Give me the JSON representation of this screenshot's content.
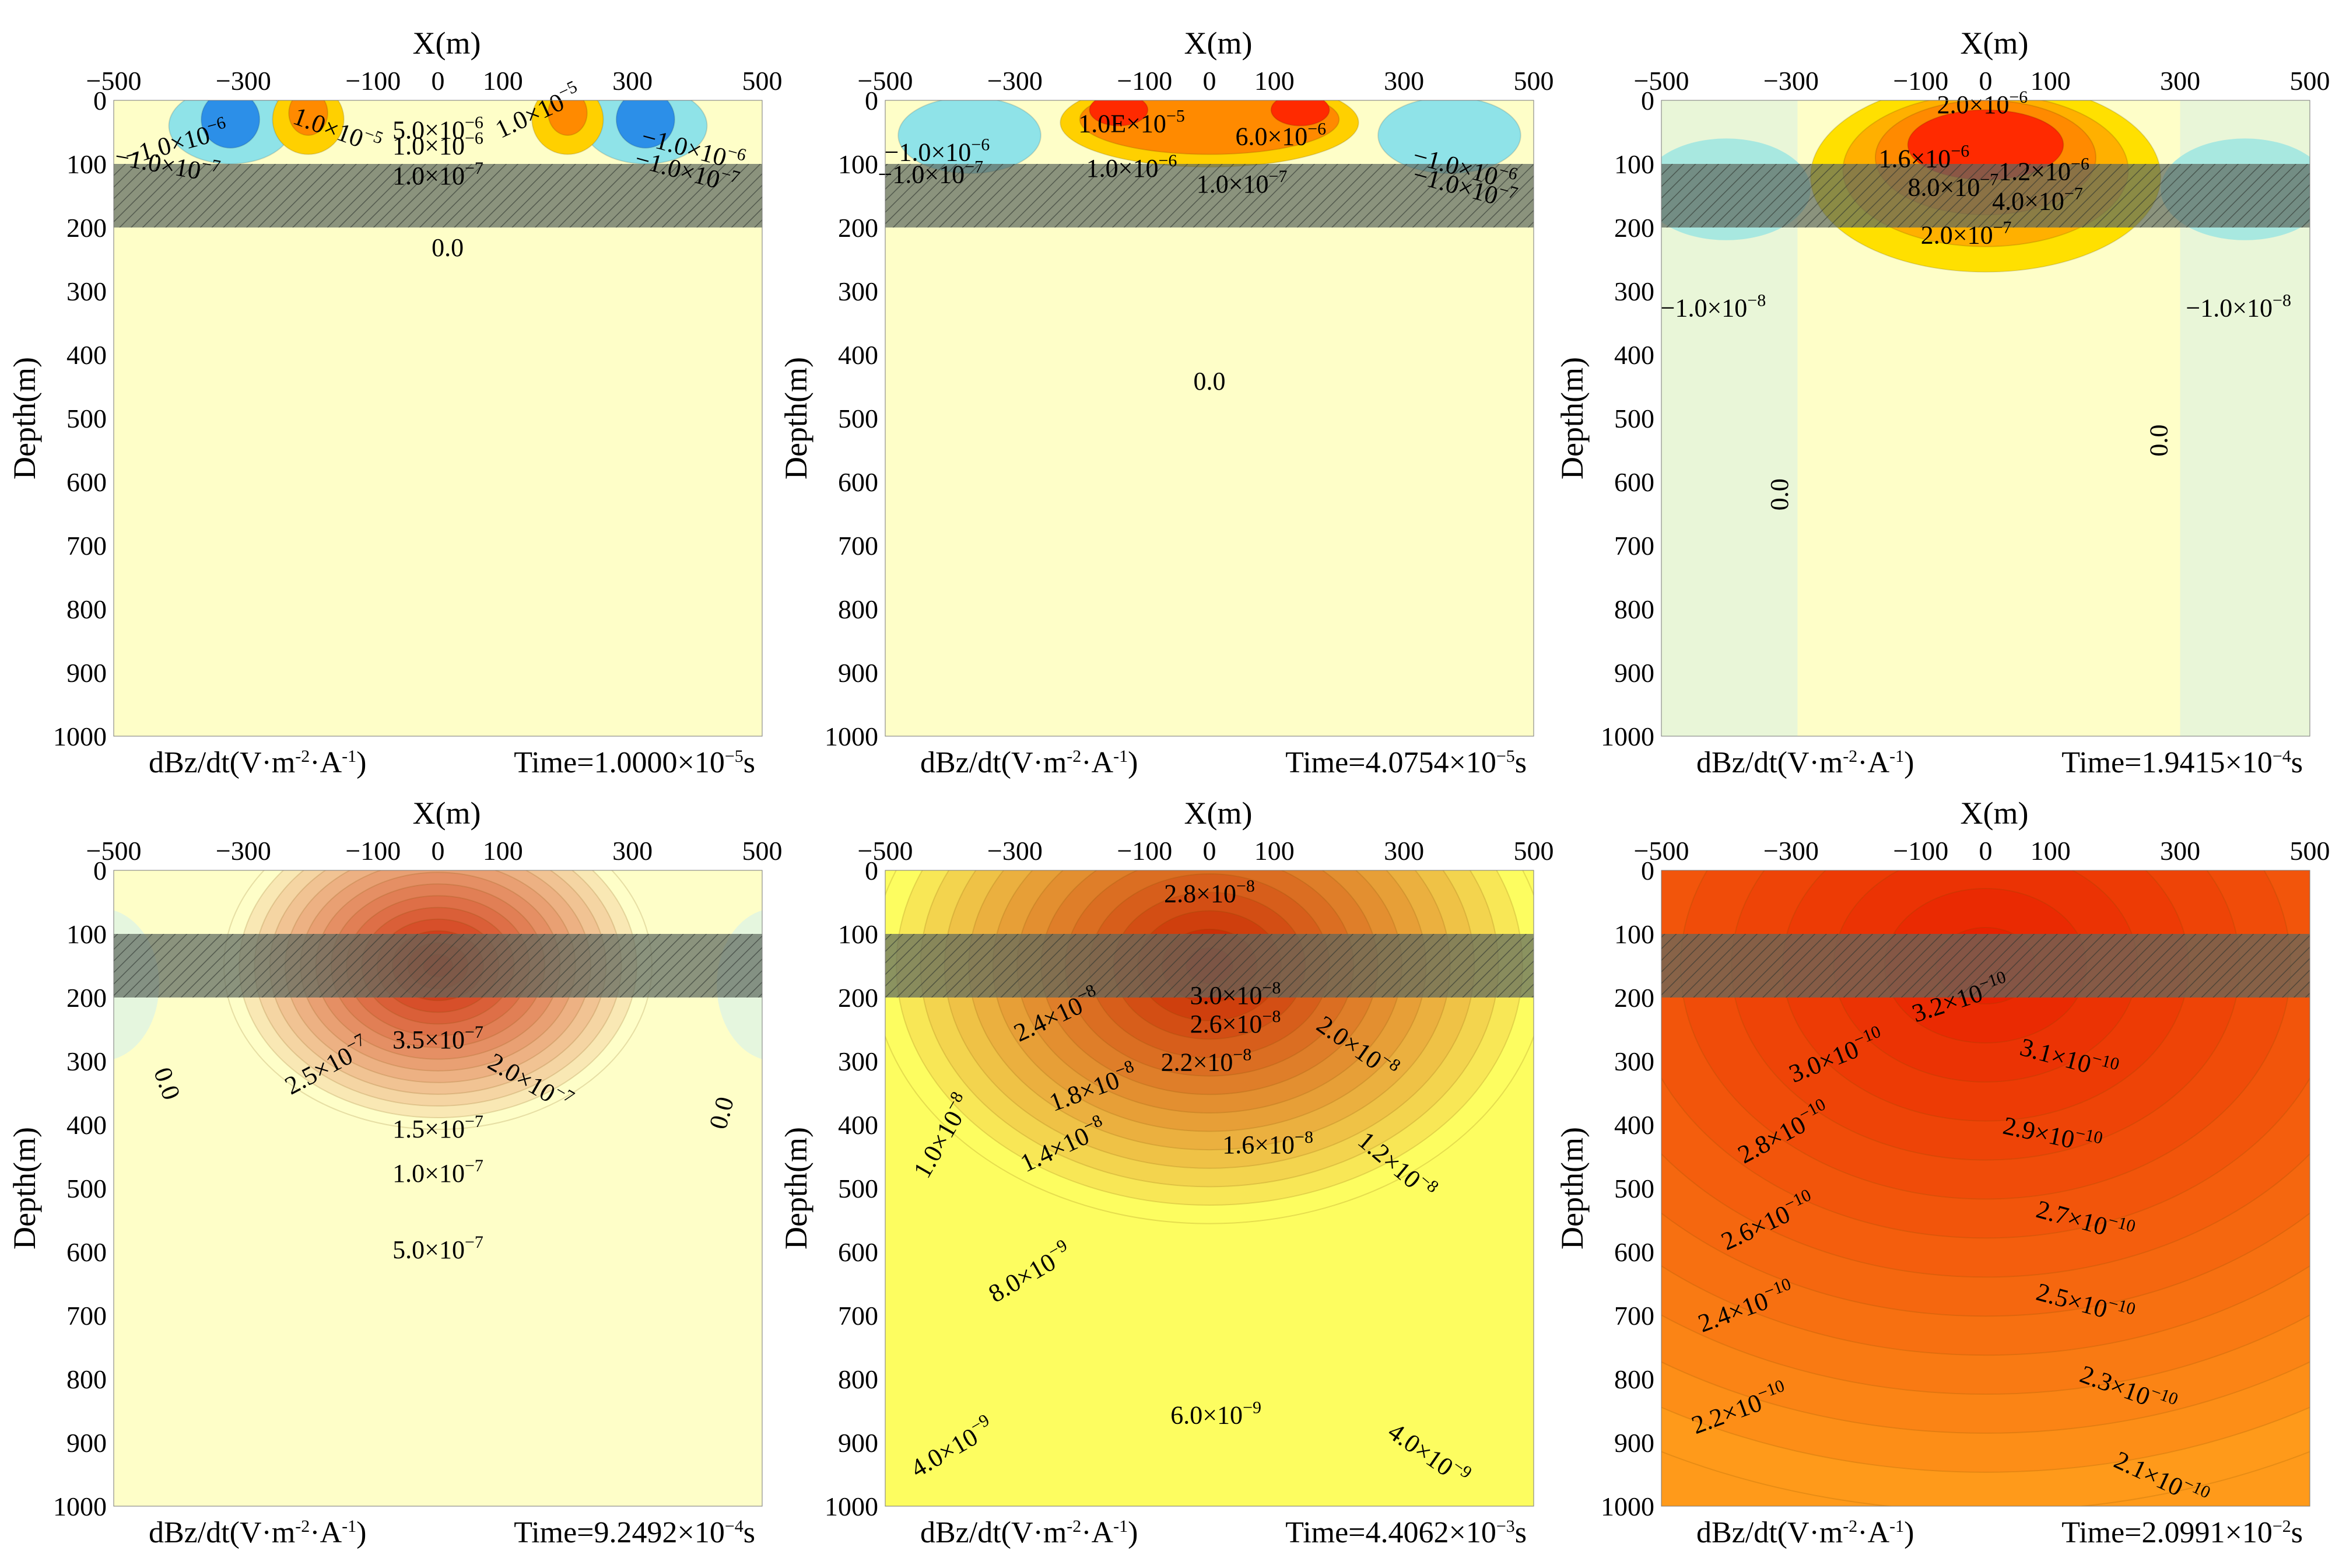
{
  "chart_data": [
    {
      "type": "heatmap",
      "panel": 1,
      "title": "",
      "xlabel": "X(m)",
      "ylabel": "Depth(m)",
      "xlim": [
        -500,
        500
      ],
      "ylim": [
        0,
        1000
      ],
      "xticks": [
        "−500",
        "−300",
        "−100",
        "0",
        "100",
        "300",
        "500"
      ],
      "xtick_values": [
        -500,
        -300,
        -100,
        0,
        100,
        300,
        500
      ],
      "yticks": [
        "0",
        "100",
        "200",
        "300",
        "400",
        "500",
        "600",
        "700",
        "800",
        "900",
        "1000"
      ],
      "ytick_values": [
        0,
        100,
        200,
        300,
        400,
        500,
        600,
        700,
        800,
        900,
        1000
      ],
      "layer": {
        "top": 100,
        "bottom": 200
      },
      "quantity": "dBz/dt(V·m",
      "quantity_unit_sup1": "-2",
      "quantity_mid": "·A",
      "quantity_unit_sup2": "-1",
      "quantity_end": ")",
      "time_label": "Time=1.0000×10",
      "time_exp": "−5",
      "time_unit": "s",
      "field": {
        "bg": "#fefec8",
        "style": "dipole"
      },
      "contour_labels": [
        {
          "m": "1.0×10",
          "e": "−5",
          "x": -160,
          "y": 60,
          "rot": -20
        },
        {
          "m": "1.0×10",
          "e": "−5",
          "x": 160,
          "y": 30,
          "rot": 25
        },
        {
          "m": "5.0×10",
          "e": "−6",
          "x": 0,
          "y": 60,
          "rot": 0
        },
        {
          "m": "1.0×10",
          "e": "−6",
          "x": 0,
          "y": 85,
          "rot": 0
        },
        {
          "m": "1.0×10",
          "e": "−7",
          "x": 0,
          "y": 132,
          "rot": 0
        },
        {
          "m": "−1.0×10",
          "e": "−6",
          "x": -400,
          "y": 80,
          "rot": 15
        },
        {
          "m": "−1.0×10",
          "e": "−7",
          "x": -420,
          "y": 115,
          "rot": -10
        },
        {
          "m": "−1.0×10",
          "e": "−6",
          "x": 390,
          "y": 90,
          "rot": -15
        },
        {
          "m": "−1.0×10",
          "e": "−7",
          "x": 380,
          "y": 125,
          "rot": -15
        },
        {
          "m": "0.0",
          "e": "",
          "x": 15,
          "y": 245,
          "rot": 0
        }
      ]
    },
    {
      "type": "heatmap",
      "panel": 2,
      "title": "",
      "xlabel": "X(m)",
      "ylabel": "Depth(m)",
      "xlim": [
        -500,
        500
      ],
      "ylim": [
        0,
        1000
      ],
      "xticks": [
        "−500",
        "−300",
        "−100",
        "0",
        "100",
        "300",
        "500"
      ],
      "xtick_values": [
        -500,
        -300,
        -100,
        0,
        100,
        300,
        500
      ],
      "yticks": [
        "0",
        "100",
        "200",
        "300",
        "400",
        "500",
        "600",
        "700",
        "800",
        "900",
        "1000"
      ],
      "ytick_values": [
        0,
        100,
        200,
        300,
        400,
        500,
        600,
        700,
        800,
        900,
        1000
      ],
      "layer": {
        "top": 100,
        "bottom": 200
      },
      "quantity": "dBz/dt(V·m",
      "quantity_unit_sup1": "-2",
      "quantity_mid": "·A",
      "quantity_unit_sup2": "-1",
      "quantity_end": ")",
      "time_label": "Time=4.0754×10",
      "time_exp": "−5",
      "time_unit": "s",
      "field": {
        "bg": "#fefec8",
        "style": "dipole2"
      },
      "contour_labels": [
        {
          "m": "1.0E×10",
          "e": "−5",
          "x": -120,
          "y": 50,
          "rot": 0
        },
        {
          "m": "6.0×10",
          "e": "−6",
          "x": 110,
          "y": 70,
          "rot": 0
        },
        {
          "m": "1.0×10",
          "e": "−6",
          "x": -120,
          "y": 120,
          "rot": 0
        },
        {
          "m": "1.0×10",
          "e": "−7",
          "x": 50,
          "y": 145,
          "rot": 0
        },
        {
          "m": "−1.0×10",
          "e": "−6",
          "x": -420,
          "y": 95,
          "rot": 0
        },
        {
          "m": "−1.0×10",
          "e": "−7",
          "x": -430,
          "y": 130,
          "rot": 0
        },
        {
          "m": "−1.0×10",
          "e": "−6",
          "x": 390,
          "y": 120,
          "rot": -15
        },
        {
          "m": "−1.0×10",
          "e": "−7",
          "x": 390,
          "y": 150,
          "rot": -15
        },
        {
          "m": "0.0",
          "e": "",
          "x": 0,
          "y": 455,
          "rot": 0
        }
      ]
    },
    {
      "type": "heatmap",
      "panel": 3,
      "title": "",
      "xlabel": "X(m)",
      "ylabel": "Depth(m)",
      "xlim": [
        -500,
        500
      ],
      "ylim": [
        0,
        1000
      ],
      "xticks": [
        "−500",
        "−300",
        "−100",
        "0",
        "100",
        "300",
        "500"
      ],
      "xtick_values": [
        -500,
        -300,
        -100,
        0,
        100,
        300,
        500
      ],
      "yticks": [
        "0",
        "100",
        "200",
        "300",
        "400",
        "500",
        "600",
        "700",
        "800",
        "900",
        "1000"
      ],
      "ytick_values": [
        0,
        100,
        200,
        300,
        400,
        500,
        600,
        700,
        800,
        900,
        1000
      ],
      "layer": {
        "top": 100,
        "bottom": 200
      },
      "quantity": "dBz/dt(V·m",
      "quantity_unit_sup1": "-2",
      "quantity_mid": "·A",
      "quantity_unit_sup2": "-1",
      "quantity_end": ")",
      "time_label": "Time=1.9415×10",
      "time_exp": "−4",
      "time_unit": "s",
      "field": {
        "bg": "#fefec8",
        "style": "spread"
      },
      "contour_labels": [
        {
          "m": "2.0×10",
          "e": "−6",
          "x": -5,
          "y": 20,
          "rot": 0
        },
        {
          "m": "1.6×10",
          "e": "−6",
          "x": -95,
          "y": 105,
          "rot": 0
        },
        {
          "m": "1.2×10",
          "e": "−6",
          "x": 90,
          "y": 125,
          "rot": 0
        },
        {
          "m": "8.0×10",
          "e": "−7",
          "x": -50,
          "y": 150,
          "rot": 0
        },
        {
          "m": "4.0×10",
          "e": "−7",
          "x": 80,
          "y": 172,
          "rot": 0
        },
        {
          "m": "2.0×10",
          "e": "−7",
          "x": -30,
          "y": 225,
          "rot": 0
        },
        {
          "m": "−1.0×10",
          "e": "−8",
          "x": -420,
          "y": 340,
          "rot": 0
        },
        {
          "m": "−1.0×10",
          "e": "−8",
          "x": 390,
          "y": 340,
          "rot": 0
        },
        {
          "m": "0.0",
          "e": "",
          "x": -305,
          "y": 620,
          "rot": 90
        },
        {
          "m": "0.0",
          "e": "",
          "x": 280,
          "y": 535,
          "rot": 90
        }
      ]
    },
    {
      "type": "heatmap",
      "panel": 4,
      "title": "",
      "xlabel": "X(m)",
      "ylabel": "Depth(m)",
      "xlim": [
        -500,
        500
      ],
      "ylim": [
        0,
        1000
      ],
      "xticks": [
        "−500",
        "−300",
        "−100",
        "0",
        "100",
        "300",
        "500"
      ],
      "xtick_values": [
        -500,
        -300,
        -100,
        0,
        100,
        300,
        500
      ],
      "yticks": [
        "0",
        "100",
        "200",
        "300",
        "400",
        "500",
        "600",
        "700",
        "800",
        "900",
        "1000"
      ],
      "ytick_values": [
        0,
        100,
        200,
        300,
        400,
        500,
        600,
        700,
        800,
        900,
        1000
      ],
      "layer": {
        "top": 100,
        "bottom": 200
      },
      "quantity": "dBz/dt(V·m",
      "quantity_unit_sup1": "-2",
      "quantity_mid": "·A",
      "quantity_unit_sup2": "-1",
      "quantity_end": ")",
      "time_label": "Time=9.2492×10",
      "time_exp": "−4",
      "time_unit": "s",
      "field": {
        "bg": "#fefec8",
        "style": "blob",
        "cx": 0,
        "cy": 150,
        "r": 330,
        "peak": "#cc2000"
      },
      "contour_labels": [
        {
          "m": "3.5×10",
          "e": "−7",
          "x": 0,
          "y": 280,
          "rot": 0
        },
        {
          "m": "2.5×10",
          "e": "−7",
          "x": -165,
          "y": 320,
          "rot": 28
        },
        {
          "m": "2.0×10",
          "e": "−7",
          "x": 135,
          "y": 345,
          "rot": -30
        },
        {
          "m": "1.5×10",
          "e": "−7",
          "x": 0,
          "y": 420,
          "rot": 0
        },
        {
          "m": "1.0×10",
          "e": "−7",
          "x": 0,
          "y": 490,
          "rot": 0
        },
        {
          "m": "5.0×10",
          "e": "−7",
          "x": 0,
          "y": 610,
          "rot": 0
        },
        {
          "m": "0.0",
          "e": "",
          "x": -430,
          "y": 340,
          "rot": -70
        },
        {
          "m": "0.0",
          "e": "",
          "x": 450,
          "y": 385,
          "rot": 75
        }
      ]
    },
    {
      "type": "heatmap",
      "panel": 5,
      "title": "",
      "xlabel": "X(m)",
      "ylabel": "Depth(m)",
      "xlim": [
        -500,
        500
      ],
      "ylim": [
        0,
        1000
      ],
      "xticks": [
        "−500",
        "−300",
        "−100",
        "0",
        "100",
        "300",
        "500"
      ],
      "xtick_values": [
        -500,
        -300,
        -100,
        0,
        100,
        300,
        500
      ],
      "yticks": [
        "0",
        "100",
        "200",
        "300",
        "400",
        "500",
        "600",
        "700",
        "800",
        "900",
        "1000"
      ],
      "ytick_values": [
        0,
        100,
        200,
        300,
        400,
        500,
        600,
        700,
        800,
        900,
        1000
      ],
      "layer": {
        "top": 100,
        "bottom": 200
      },
      "quantity": "dBz/dt(V·m",
      "quantity_unit_sup1": "-2",
      "quantity_mid": "·A",
      "quantity_unit_sup2": "-1",
      "quantity_end": ")",
      "time_label": "Time=4.4062×10",
      "time_exp": "−3",
      "time_unit": "s",
      "field": {
        "bg": "#fdfd60",
        "style": "blob",
        "cx": 0,
        "cy": 150,
        "r": 520,
        "peak": "#c82000"
      },
      "contour_labels": [
        {
          "m": "2.8×10",
          "e": "−8",
          "x": 0,
          "y": 50,
          "rot": 0
        },
        {
          "m": "3.0×10",
          "e": "−8",
          "x": 40,
          "y": 210,
          "rot": 0
        },
        {
          "m": "2.4×10",
          "e": "−8",
          "x": -230,
          "y": 240,
          "rot": 25
        },
        {
          "m": "2.6×10",
          "e": "−8",
          "x": 40,
          "y": 255,
          "rot": 0
        },
        {
          "m": "2.2×10",
          "e": "−8",
          "x": -5,
          "y": 315,
          "rot": 0
        },
        {
          "m": "2.0×10",
          "e": "−8",
          "x": 220,
          "y": 290,
          "rot": -35
        },
        {
          "m": "1.8×10",
          "e": "−8",
          "x": -175,
          "y": 355,
          "rot": 20
        },
        {
          "m": "1.4×10",
          "e": "−8",
          "x": -220,
          "y": 445,
          "rot": 25
        },
        {
          "m": "1.6×10",
          "e": "−8",
          "x": 90,
          "y": 445,
          "rot": 0
        },
        {
          "m": "1.2×10",
          "e": "−8",
          "x": 280,
          "y": 475,
          "rot": -40
        },
        {
          "m": "1.0×10",
          "e": "−8",
          "x": -400,
          "y": 425,
          "rot": 60
        },
        {
          "m": "8.0×10",
          "e": "−9",
          "x": -270,
          "y": 645,
          "rot": 30
        },
        {
          "m": "6.0×10",
          "e": "−9",
          "x": 10,
          "y": 870,
          "rot": 0
        },
        {
          "m": "4.0×10",
          "e": "−9",
          "x": -390,
          "y": 920,
          "rot": 30
        },
        {
          "m": "4.0×10",
          "e": "−9",
          "x": 330,
          "y": 930,
          "rot": -35
        }
      ]
    },
    {
      "type": "heatmap",
      "panel": 6,
      "title": "",
      "xlabel": "X(m)",
      "ylabel": "Depth(m)",
      "xlim": [
        -500,
        500
      ],
      "ylim": [
        0,
        1000
      ],
      "xticks": [
        "−500",
        "−300",
        "−100",
        "0",
        "100",
        "300",
        "500"
      ],
      "xtick_values": [
        -500,
        -300,
        -100,
        0,
        100,
        300,
        500
      ],
      "yticks": [
        "0",
        "100",
        "200",
        "300",
        "400",
        "500",
        "600",
        "700",
        "800",
        "900",
        "1000"
      ],
      "ytick_values": [
        0,
        100,
        200,
        300,
        400,
        500,
        600,
        700,
        800,
        900,
        1000
      ],
      "layer": {
        "top": 100,
        "bottom": 200
      },
      "quantity": "dBz/dt(V·m",
      "quantity_unit_sup1": "-2",
      "quantity_mid": "·A",
      "quantity_unit_sup2": "-1",
      "quantity_end": ")",
      "time_label": "Time=2.0991×10",
      "time_exp": "−2",
      "time_unit": "s",
      "field": {
        "bg": "#ff9a1a",
        "style": "blob",
        "cx": 0,
        "cy": 150,
        "r": 1100,
        "peak": "#e82200"
      },
      "contour_labels": [
        {
          "m": "3.2×10",
          "e": "−10",
          "x": -35,
          "y": 215,
          "rot": 18
        },
        {
          "m": "3.0×10",
          "e": "−10",
          "x": -225,
          "y": 305,
          "rot": 22
        },
        {
          "m": "3.1×10",
          "e": "−10",
          "x": 125,
          "y": 310,
          "rot": -15
        },
        {
          "m": "2.8×10",
          "e": "−10",
          "x": -305,
          "y": 425,
          "rot": 28
        },
        {
          "m": "2.9×10",
          "e": "−10",
          "x": 100,
          "y": 430,
          "rot": -12
        },
        {
          "m": "2.6×10",
          "e": "−10",
          "x": -330,
          "y": 565,
          "rot": 25
        },
        {
          "m": "2.7×10",
          "e": "−10",
          "x": 150,
          "y": 565,
          "rot": -15
        },
        {
          "m": "2.4×10",
          "e": "−10",
          "x": -365,
          "y": 700,
          "rot": 20
        },
        {
          "m": "2.5×10",
          "e": "−10",
          "x": 150,
          "y": 695,
          "rot": -15
        },
        {
          "m": "2.2×10",
          "e": "−10",
          "x": -375,
          "y": 860,
          "rot": 20
        },
        {
          "m": "2.3×10",
          "e": "−10",
          "x": 215,
          "y": 830,
          "rot": -20
        },
        {
          "m": "2.1×10",
          "e": "−10",
          "x": 265,
          "y": 970,
          "rot": -25
        }
      ]
    }
  ],
  "colors": {
    "layer_fill": "#5e6960",
    "hatch": "#2e342f",
    "text": "#000000",
    "blue": "#2c8fe8",
    "cyan": "#8fe3e8",
    "orange": "#ff8a00",
    "red": "#ff2a00"
  }
}
